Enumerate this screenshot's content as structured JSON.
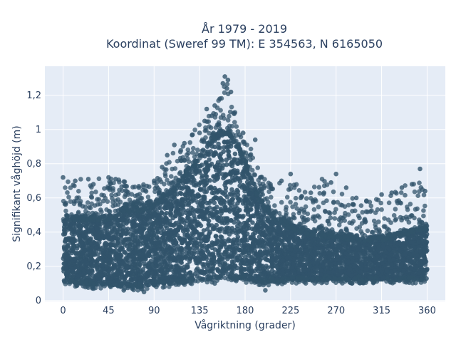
{
  "chart_data": {
    "type": "scatter",
    "title_lines": [
      "År 1979 - 2019",
      "Koordinat (Sweref 99 TM): E 354563, N 6165050"
    ],
    "xlabel": "Vågriktning (grader)",
    "ylabel": "Signifikant våghöjd (m)",
    "xlim": [
      -18,
      378
    ],
    "ylim": [
      -0.005,
      1.37
    ],
    "xticks": [
      0,
      45,
      90,
      135,
      180,
      225,
      270,
      315,
      360
    ],
    "xtick_labels": [
      "0",
      "45",
      "90",
      "135",
      "180",
      "225",
      "270",
      "315",
      "360"
    ],
    "yticks": [
      0,
      0.2,
      0.4,
      0.6,
      0.8,
      1.0,
      1.2
    ],
    "ytick_labels": [
      "0",
      "0,2",
      "0,4",
      "0,6",
      "0,8",
      "1",
      "1,2"
    ],
    "grid": true,
    "marker_color": "#31546b",
    "plot_background": "#e5ecf6",
    "envelope": {
      "direction": [
        0,
        15,
        30,
        45,
        60,
        75,
        90,
        105,
        120,
        135,
        145,
        155,
        160,
        165,
        175,
        185,
        195,
        210,
        225,
        240,
        255,
        270,
        285,
        300,
        315,
        330,
        345,
        360
      ],
      "lower": [
        0.09,
        0.08,
        0.07,
        0.07,
        0.06,
        0.06,
        0.07,
        0.08,
        0.09,
        0.1,
        0.1,
        0.11,
        0.11,
        0.11,
        0.11,
        0.1,
        0.09,
        0.09,
        0.1,
        0.1,
        0.1,
        0.1,
        0.1,
        0.1,
        0.1,
        0.1,
        0.1,
        0.1
      ],
      "dense_upper": [
        0.5,
        0.5,
        0.5,
        0.5,
        0.55,
        0.55,
        0.58,
        0.65,
        0.75,
        0.85,
        0.95,
        1.0,
        1.0,
        1.0,
        0.9,
        0.75,
        0.6,
        0.5,
        0.45,
        0.42,
        0.4,
        0.4,
        0.38,
        0.38,
        0.38,
        0.4,
        0.42,
        0.45
      ],
      "max": [
        0.72,
        0.72,
        0.72,
        0.72,
        0.7,
        0.68,
        0.7,
        0.85,
        0.92,
        1.05,
        1.12,
        1.2,
        1.31,
        1.25,
        1.0,
        0.94,
        0.75,
        0.7,
        0.7,
        0.65,
        0.74,
        0.65,
        0.62,
        0.6,
        0.64,
        0.66,
        0.77,
        0.65
      ]
    },
    "points": [
      [
        0,
        0.72
      ],
      [
        12,
        0.7
      ],
      [
        25,
        0.71
      ],
      [
        30,
        0.68
      ],
      [
        45,
        0.72
      ],
      [
        52,
        0.71
      ],
      [
        62,
        0.67
      ],
      [
        75,
        0.66
      ],
      [
        90,
        0.7
      ],
      [
        98,
        0.78
      ],
      [
        103,
        0.85
      ],
      [
        110,
        0.91
      ],
      [
        120,
        0.92
      ],
      [
        128,
        0.97
      ],
      [
        135,
        0.98
      ],
      [
        140,
        1.05
      ],
      [
        142,
        1.12
      ],
      [
        147,
        1.08
      ],
      [
        150,
        1.14
      ],
      [
        155,
        1.18
      ],
      [
        158,
        1.27
      ],
      [
        160,
        1.31
      ],
      [
        162,
        1.24
      ],
      [
        163,
        1.29
      ],
      [
        166,
        1.22
      ],
      [
        170,
        1.1
      ],
      [
        178,
        0.98
      ],
      [
        185,
        0.85
      ],
      [
        190,
        0.94
      ],
      [
        195,
        0.72
      ],
      [
        205,
        0.68
      ],
      [
        216,
        0.7
      ],
      [
        225,
        0.74
      ],
      [
        235,
        0.6
      ],
      [
        245,
        0.63
      ],
      [
        258,
        0.63
      ],
      [
        265,
        0.69
      ],
      [
        270,
        0.74
      ],
      [
        280,
        0.66
      ],
      [
        290,
        0.6
      ],
      [
        300,
        0.58
      ],
      [
        315,
        0.62
      ],
      [
        325,
        0.63
      ],
      [
        335,
        0.66
      ],
      [
        345,
        0.68
      ],
      [
        353,
        0.77
      ],
      [
        358,
        0.64
      ],
      [
        80,
        0.05
      ],
      [
        60,
        0.06
      ],
      [
        200,
        0.06
      ],
      [
        30,
        0.07
      ],
      [
        150,
        0.1
      ]
    ]
  }
}
